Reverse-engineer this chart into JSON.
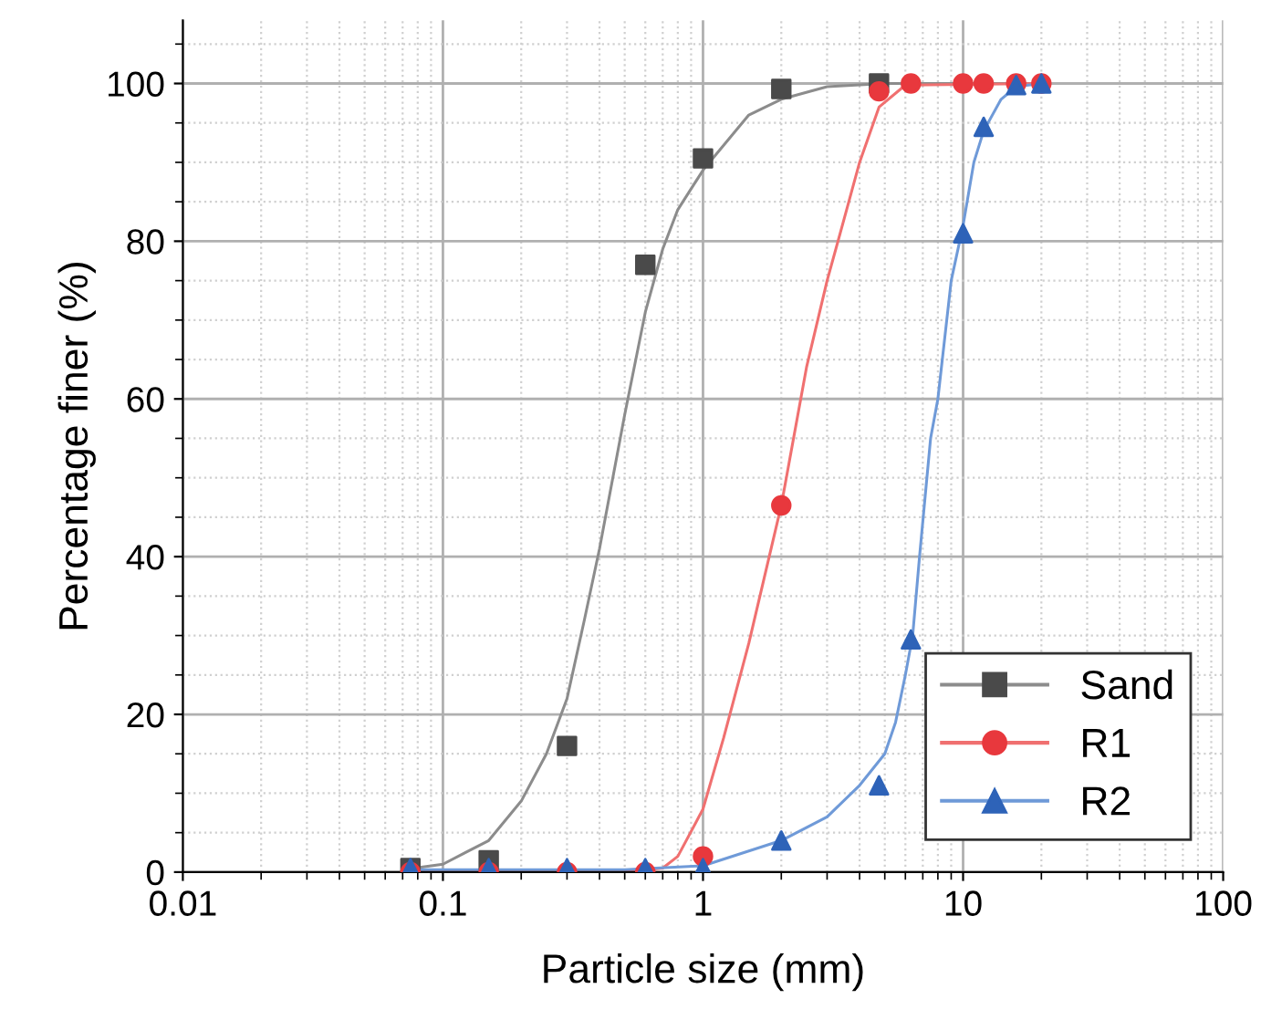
{
  "chart_data": {
    "type": "scatter",
    "xlabel": "Particle size (mm)",
    "ylabel": "Percentage finer (%)",
    "log": "x",
    "xlim": [
      0.01,
      100
    ],
    "ylim": [
      0,
      108
    ],
    "xticks": [
      0.01,
      0.1,
      1,
      10,
      100
    ],
    "yticks": [
      0,
      20,
      40,
      60,
      80,
      100
    ],
    "grid": true,
    "legend": "bottom right",
    "series": [
      {
        "type": "line",
        "marker": "none",
        "color": "#8c8c8c",
        "x": [
          0.07,
          0.1,
          0.15,
          0.2,
          0.25,
          0.3,
          0.35,
          0.4,
          0.45,
          0.5,
          0.6,
          0.7,
          0.8,
          1,
          1.5,
          2,
          3,
          5,
          20
        ],
        "values": [
          0.3,
          1,
          4,
          9,
          15,
          22,
          32,
          41,
          50,
          58,
          71,
          79,
          84,
          89,
          96,
          98,
          99.6,
          100,
          100
        ]
      },
      {
        "type": "line",
        "marker": "none",
        "color": "#f07070",
        "x": [
          0.07,
          0.5,
          0.7,
          0.8,
          1,
          1.2,
          1.5,
          2,
          2.5,
          3,
          3.5,
          4,
          4.75,
          6,
          20
        ],
        "values": [
          0,
          0,
          0.5,
          2,
          8,
          17,
          29,
          46.5,
          64,
          75,
          83,
          90,
          97,
          99.8,
          100
        ]
      },
      {
        "type": "line",
        "marker": "none",
        "color": "#6f9ad8",
        "x": [
          0.075,
          0.5,
          1,
          2,
          3,
          4,
          5,
          5.5,
          6,
          6.4,
          6.8,
          7.5,
          8,
          9,
          10,
          11,
          12,
          14,
          16,
          20
        ],
        "values": [
          0.3,
          0.3,
          0.8,
          4,
          7,
          11,
          15,
          19,
          25,
          30,
          40,
          55,
          60,
          75,
          82,
          90,
          94,
          98,
          99.6,
          100
        ]
      },
      {
        "name": "Sand",
        "marker": "square",
        "color": "#4a4a4a",
        "x": [
          0.075,
          0.15,
          0.3,
          0.6,
          1,
          2,
          4.75
        ],
        "values": [
          0.5,
          1.5,
          16,
          77,
          90.5,
          99.3,
          100
        ]
      },
      {
        "name": "R1",
        "marker": "circle",
        "color": "#e8383d",
        "x": [
          0.075,
          0.15,
          0.3,
          0.6,
          1,
          2,
          4.75,
          6.3,
          10,
          12,
          16,
          20
        ],
        "values": [
          0,
          0,
          0,
          0,
          2,
          46.5,
          99,
          100,
          100,
          100,
          100,
          100
        ]
      },
      {
        "name": "R2",
        "marker": "triangle",
        "color": "#2e63b8",
        "x": [
          0.075,
          0.15,
          0.3,
          0.6,
          1,
          2,
          4.75,
          6.3,
          10,
          12,
          16,
          20
        ],
        "values": [
          0.5,
          0.5,
          0.5,
          0.5,
          0.5,
          4,
          11,
          29.5,
          81,
          94.5,
          99.8,
          100
        ]
      }
    ]
  }
}
